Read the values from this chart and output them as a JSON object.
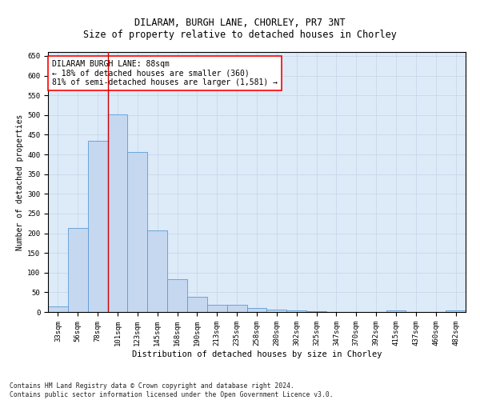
{
  "title": "DILARAM, BURGH LANE, CHORLEY, PR7 3NT",
  "subtitle": "Size of property relative to detached houses in Chorley",
  "xlabel": "Distribution of detached houses by size in Chorley",
  "ylabel": "Number of detached properties",
  "categories": [
    "33sqm",
    "56sqm",
    "78sqm",
    "101sqm",
    "123sqm",
    "145sqm",
    "168sqm",
    "190sqm",
    "213sqm",
    "235sqm",
    "258sqm",
    "280sqm",
    "302sqm",
    "325sqm",
    "347sqm",
    "370sqm",
    "392sqm",
    "415sqm",
    "437sqm",
    "460sqm",
    "482sqm"
  ],
  "values": [
    15,
    213,
    435,
    502,
    407,
    207,
    84,
    38,
    19,
    18,
    10,
    6,
    4,
    2,
    1,
    1,
    1,
    4,
    0,
    0,
    4
  ],
  "bar_color": "#c5d8f0",
  "bar_edge_color": "#5b9bd5",
  "bar_edge_width": 0.6,
  "red_line_x": 2.5,
  "annotation_text": "DILARAM BURGH LANE: 88sqm\n← 18% of detached houses are smaller (360)\n81% of semi-detached houses are larger (1,581) →",
  "annotation_box_color": "white",
  "annotation_box_edge_color": "red",
  "annotation_fontsize": 7.0,
  "red_line_color": "#cc0000",
  "grid_color": "#c8d8ea",
  "background_color": "#ddeaf8",
  "ylim": [
    0,
    660
  ],
  "yticks": [
    0,
    50,
    100,
    150,
    200,
    250,
    300,
    350,
    400,
    450,
    500,
    550,
    600,
    650
  ],
  "title_fontsize": 8.5,
  "subtitle_fontsize": 8.5,
  "xlabel_fontsize": 7.5,
  "ylabel_fontsize": 7.0,
  "tick_fontsize": 6.5,
  "footnote": "Contains HM Land Registry data © Crown copyright and database right 2024.\nContains public sector information licensed under the Open Government Licence v3.0.",
  "footnote_fontsize": 5.8
}
